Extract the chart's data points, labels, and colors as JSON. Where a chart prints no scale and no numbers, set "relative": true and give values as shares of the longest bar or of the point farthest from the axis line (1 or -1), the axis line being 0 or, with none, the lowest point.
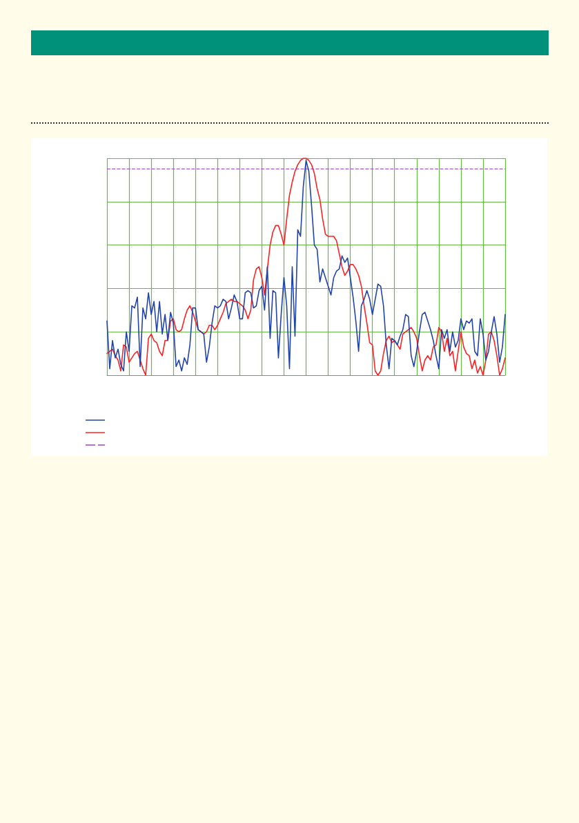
{
  "chart_data": {
    "type": "line",
    "relative": true,
    "grid": true,
    "marker": "none",
    "line_style": "solid",
    "categories": [
      null,
      null,
      null,
      null,
      null,
      null,
      null,
      null,
      null,
      null,
      null,
      null,
      null,
      null,
      null,
      null,
      null,
      null,
      null,
      null,
      null,
      null,
      null,
      null,
      null,
      null,
      null,
      null,
      null,
      null,
      null,
      null,
      null,
      null,
      null,
      null,
      null,
      null,
      null,
      null,
      null,
      null,
      null,
      null,
      null,
      null,
      null,
      null,
      null,
      null,
      null,
      null,
      null,
      null,
      null,
      null,
      null,
      null,
      null,
      null,
      null,
      null,
      null,
      null,
      null,
      null,
      null,
      null,
      null,
      null,
      null,
      null,
      null,
      null,
      null,
      null,
      null,
      null,
      null,
      null,
      null,
      null,
      null,
      null,
      null,
      null,
      null,
      null,
      null,
      null,
      null,
      null,
      null,
      null,
      null,
      null,
      null,
      null,
      null,
      null,
      null,
      null,
      null,
      null,
      null,
      null,
      null,
      null,
      null,
      null,
      null,
      null,
      null,
      null,
      null,
      null,
      null,
      null,
      null,
      null,
      null,
      null,
      null,
      null,
      null,
      null,
      null,
      null,
      null,
      null,
      null,
      null,
      null,
      null,
      null,
      null,
      null,
      null,
      null,
      null,
      null,
      null,
      null,
      null,
      null
    ],
    "series": [
      {
        "color": "#2244aa",
        "values": [
          0.25,
          0.03,
          0.16,
          0.08,
          0.12,
          0.05,
          0.02,
          0.2,
          0.11,
          0.32,
          0.31,
          0.36,
          0.04,
          0.31,
          0.26,
          0.38,
          0.28,
          0.34,
          0.2,
          0.34,
          0.19,
          0.28,
          0.16,
          0.29,
          0.24,
          0.04,
          0.07,
          0.02,
          0.08,
          0.05,
          0.14,
          0.31,
          0.31,
          0.21,
          0.2,
          0.19,
          0.06,
          0.13,
          0.24,
          0.32,
          0.31,
          0.32,
          0.35,
          0.34,
          0.26,
          0.31,
          0.37,
          0.34,
          0.26,
          0.26,
          0.38,
          0.39,
          0.38,
          0.31,
          0.32,
          0.39,
          0.41,
          0.3,
          0.5,
          0.17,
          0.39,
          0.38,
          0.08,
          0.28,
          0.45,
          0.32,
          0.03,
          0.5,
          0.18,
          0.67,
          0.64,
          0.87,
          0.99,
          0.94,
          0.78,
          0.6,
          0.58,
          0.43,
          0.49,
          0.45,
          0.41,
          0.37,
          0.45,
          0.48,
          0.49,
          0.55,
          0.52,
          0.54,
          0.45,
          0.36,
          0.25,
          0.11,
          0.32,
          0.35,
          0.39,
          0.35,
          0.28,
          0.35,
          0.42,
          0.41,
          0.32,
          0.14,
          0.03,
          0.17,
          0.16,
          0.14,
          0.18,
          0.21,
          0.28,
          0.27,
          0.09,
          0.04,
          0.11,
          0.2,
          0.28,
          0.29,
          0.25,
          0.21,
          0.16,
          0.09,
          0.03,
          0.21,
          0.17,
          0.21,
          0.11,
          0.2,
          0.13,
          0.16,
          0.26,
          0.21,
          0.25,
          0.24,
          0.26,
          0.11,
          0.09,
          0.26,
          0.19,
          0.07,
          0.11,
          0.2,
          0.27,
          0.19,
          0.06,
          0.13,
          0.28
        ]
      },
      {
        "color": "#ff2222",
        "values": [
          0.1,
          0.11,
          0.12,
          0.09,
          0.07,
          0.02,
          0.14,
          0.13,
          0.06,
          0.08,
          0.1,
          0.11,
          0.07,
          0.03,
          0,
          0.17,
          0.19,
          0.16,
          0.15,
          0.11,
          0.09,
          0.16,
          0.16,
          0.25,
          0.26,
          0.21,
          0.2,
          0.21,
          0.26,
          0.3,
          0.32,
          0.29,
          0.25,
          0.21,
          0.2,
          0.19,
          0.2,
          0.23,
          0.23,
          0.21,
          0.23,
          0.26,
          0.29,
          0.33,
          0.34,
          0.35,
          0.34,
          0.34,
          0.33,
          0.32,
          0.3,
          0.26,
          0.3,
          0.44,
          0.49,
          0.5,
          0.45,
          0.37,
          0.49,
          0.6,
          0.66,
          0.69,
          0.69,
          0.65,
          0.6,
          0.72,
          0.83,
          0.89,
          0.94,
          0.97,
          0.99,
          1,
          1,
          0.99,
          0.97,
          0.93,
          0.86,
          0.81,
          0.72,
          0.65,
          0.64,
          0.64,
          0.64,
          0.62,
          0.56,
          0.5,
          0.46,
          0.48,
          0.51,
          0.51,
          0.49,
          0.46,
          0.41,
          0.32,
          0.24,
          0.15,
          0.14,
          0.02,
          0,
          0.02,
          0.1,
          0.16,
          0.18,
          0.15,
          0.16,
          0.14,
          0.12,
          0.19,
          0.2,
          0.21,
          0.22,
          0.2,
          0.17,
          0.09,
          0.02,
          0.07,
          0.09,
          0.07,
          0.13,
          0.14,
          0.22,
          0.2,
          0.11,
          0.17,
          0.09,
          0.11,
          0.02,
          0.11,
          0.2,
          0.13,
          0.1,
          0.09,
          0.03,
          0.07,
          0.01,
          0.04,
          0,
          0.07,
          0.19,
          0.2,
          0.16,
          0.09,
          0,
          0.03,
          0.08
        ]
      }
    ],
    "ref_lines": [
      {
        "axis": "y",
        "value": 0.95,
        "color": "#9944cc",
        "line_style": "dashed"
      }
    ]
  }
}
